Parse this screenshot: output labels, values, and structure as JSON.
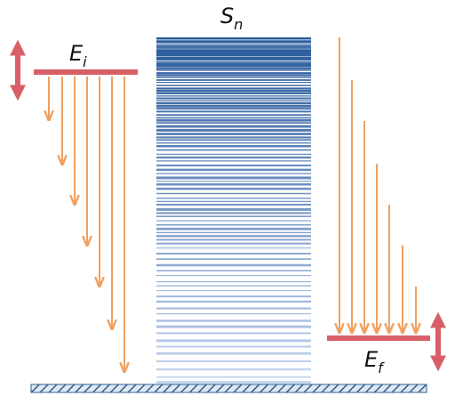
{
  "labels": {
    "top": {
      "base": "S",
      "sub": "n"
    },
    "initial": {
      "base": "E",
      "sub": "i"
    },
    "final": {
      "base": "E",
      "sub": "f"
    }
  }
}
